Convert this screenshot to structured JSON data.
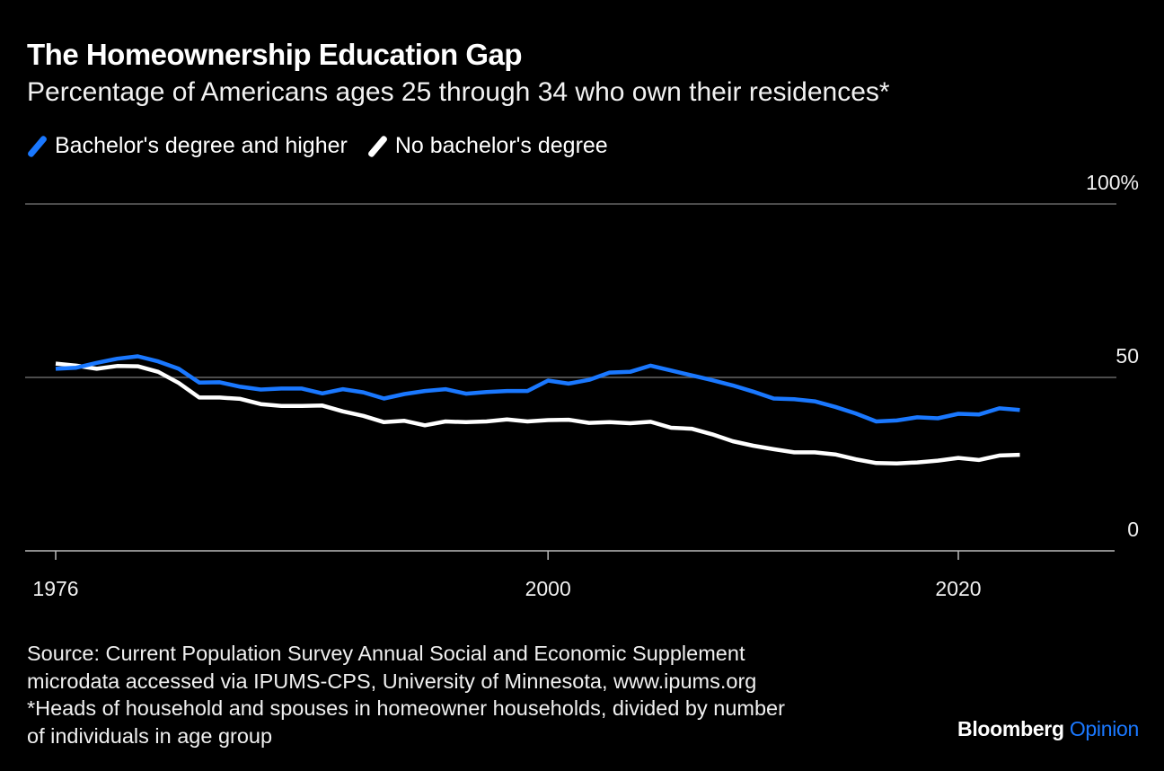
{
  "header": {
    "title": "The Homeownership Education Gap",
    "subtitle": "Percentage of Americans ages 25 through 34 who own their residences*"
  },
  "footer": {
    "source_line1": "Source: Current Population Survey Annual Social and Economic Supplement",
    "source_line2": "microdata accessed via IPUMS-CPS, University of Minnesota, www.ipums.org",
    "note_line1": "*Heads of household and spouses in homeowner households, divided by number",
    "note_line2": "of individuals in age group",
    "brand": "Bloomberg",
    "brand_suffix": "Opinion"
  },
  "colors": {
    "background": "#000000",
    "bachelors": "#1a78ff",
    "no_bachelors": "#ffffff",
    "gridline": "#666666"
  },
  "chart_data": {
    "type": "line",
    "title": "The Homeownership Education Gap",
    "subtitle": "Percentage of Americans ages 25 through 34 who own their residences*",
    "xlim": [
      1976,
      2023
    ],
    "ylim": [
      0,
      100
    ],
    "x_ticks": [
      1976,
      2000,
      2020
    ],
    "y_ticks": [
      {
        "value": 0,
        "label": "0"
      },
      {
        "value": 50,
        "label": "50"
      },
      {
        "value": 100,
        "label": "100%"
      }
    ],
    "grid": true,
    "legend_position": "top-left",
    "x": [
      1976,
      1977,
      1978,
      1979,
      1980,
      1981,
      1982,
      1983,
      1984,
      1985,
      1986,
      1987,
      1988,
      1989,
      1990,
      1991,
      1992,
      1993,
      1994,
      1995,
      1996,
      1997,
      1998,
      1999,
      2000,
      2001,
      2002,
      2003,
      2004,
      2005,
      2006,
      2007,
      2008,
      2009,
      2010,
      2011,
      2012,
      2013,
      2014,
      2015,
      2016,
      2017,
      2018,
      2019,
      2020,
      2021,
      2022,
      2023
    ],
    "series": [
      {
        "name": "Bachelor's degree and higher",
        "color": "#1a78ff",
        "values": [
          52.5,
          52.8,
          54.2,
          55.4,
          56.1,
          54.6,
          52.5,
          48.5,
          48.6,
          47.3,
          46.5,
          46.8,
          46.8,
          45.4,
          46.6,
          45.7,
          43.9,
          45.2,
          46.1,
          46.6,
          45.3,
          45.8,
          46.1,
          46.1,
          49.1,
          48.2,
          49.3,
          51.4,
          51.6,
          53.4,
          52.0,
          50.6,
          49.2,
          47.7,
          45.9,
          43.9,
          43.7,
          43.1,
          41.5,
          39.6,
          37.3,
          37.6,
          38.5,
          38.2,
          39.5,
          39.3,
          41.1,
          40.6
        ]
      },
      {
        "name": "No bachelor's degree",
        "color": "#ffffff",
        "values": [
          54.0,
          53.4,
          52.5,
          53.3,
          53.2,
          51.6,
          48.4,
          44.2,
          44.2,
          43.8,
          42.3,
          41.8,
          41.8,
          41.9,
          40.2,
          38.9,
          37.1,
          37.5,
          36.2,
          37.3,
          37.1,
          37.3,
          37.9,
          37.3,
          37.7,
          37.8,
          36.9,
          37.1,
          36.8,
          37.2,
          35.5,
          35.2,
          33.6,
          31.6,
          30.3,
          29.3,
          28.4,
          28.4,
          27.8,
          26.4,
          25.3,
          25.2,
          25.5,
          26.0,
          26.8,
          26.2,
          27.5,
          27.7
        ]
      }
    ]
  }
}
